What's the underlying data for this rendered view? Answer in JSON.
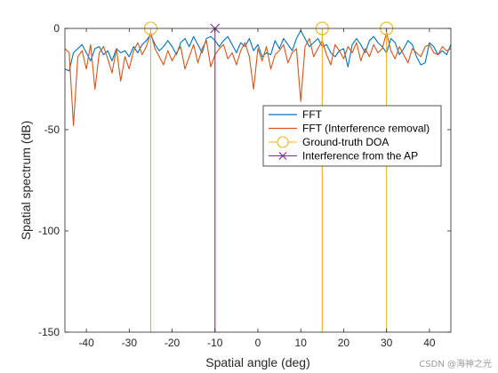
{
  "chart_data": {
    "type": "line",
    "title": "",
    "xlabel": "Spatial angle (deg)",
    "ylabel": "Spatial spectrum (dB)",
    "xlim": [
      -45,
      45
    ],
    "ylim": [
      -150,
      0
    ],
    "xticks": [
      -40,
      -30,
      -20,
      -10,
      0,
      10,
      20,
      30,
      40
    ],
    "yticks": [
      0,
      -50,
      -100,
      -150
    ],
    "grid": false,
    "legend_position": "middle-right",
    "colors": {
      "fft": "#0072BD",
      "fft_ir": "#D95319",
      "doa": "#EDB120",
      "ap": "#7E2F8E"
    },
    "series": [
      {
        "name": "FFT",
        "x": [
          -45,
          -44,
          -43,
          -42,
          -41,
          -40,
          -39,
          -38,
          -37,
          -36,
          -35,
          -34,
          -33,
          -32,
          -31,
          -30,
          -29,
          -28,
          -27,
          -26,
          -25,
          -24,
          -23,
          -22,
          -21,
          -20,
          -19,
          -18,
          -17,
          -16,
          -15,
          -14,
          -13,
          -12,
          -11,
          -10,
          -9,
          -8,
          -7,
          -6,
          -5,
          -4,
          -3,
          -2,
          -1,
          0,
          1,
          2,
          3,
          4,
          5,
          6,
          7,
          8,
          9,
          10,
          11,
          12,
          13,
          14,
          15,
          16,
          17,
          18,
          19,
          20,
          21,
          22,
          23,
          24,
          25,
          26,
          27,
          28,
          29,
          30,
          31,
          32,
          33,
          34,
          35,
          36,
          37,
          38,
          39,
          40,
          41,
          42,
          43,
          44,
          45
        ],
        "y": [
          -20,
          -21,
          -12,
          -10,
          -8,
          -12,
          -16,
          -10,
          -9,
          -13,
          -11,
          -16,
          -10,
          -12,
          -11,
          -14,
          -9,
          -12,
          -8,
          -6,
          -3,
          -8,
          -11,
          -9,
          -6,
          -9,
          -13,
          -7,
          -5,
          -9,
          -4,
          -8,
          -12,
          -5,
          -4,
          -6,
          -9,
          -6,
          -4,
          -8,
          -12,
          -7,
          -9,
          -5,
          -11,
          -8,
          -14,
          -12,
          -13,
          -6,
          -10,
          -5,
          -8,
          -11,
          -5,
          -1,
          -5,
          -9,
          -7,
          -5,
          -9,
          -8,
          -12,
          -14,
          -11,
          -10,
          -19,
          -8,
          -5,
          -8,
          -12,
          -6,
          -4,
          -7,
          -9,
          -12,
          -5,
          -7,
          -13,
          -10,
          -6,
          -8,
          -14,
          -18,
          -17,
          -7,
          -9,
          -13,
          -11,
          -13,
          -8
        ]
      },
      {
        "name": "FFT (Interference removal)",
        "x": [
          -45,
          -44,
          -43,
          -42,
          -41,
          -40,
          -39,
          -38,
          -37,
          -36,
          -35,
          -34,
          -33,
          -32,
          -31,
          -30,
          -29,
          -28,
          -27,
          -26,
          -25,
          -24,
          -23,
          -22,
          -21,
          -20,
          -19,
          -18,
          -17,
          -16,
          -15,
          -14,
          -13,
          -12,
          -11,
          -10,
          -9,
          -8,
          -7,
          -6,
          -5,
          -4,
          -3,
          -2,
          -1,
          0,
          1,
          2,
          3,
          4,
          5,
          6,
          7,
          8,
          9,
          10,
          11,
          12,
          13,
          14,
          15,
          16,
          17,
          18,
          19,
          20,
          21,
          22,
          23,
          24,
          25,
          26,
          27,
          28,
          29,
          30,
          31,
          32,
          33,
          34,
          35,
          36,
          37,
          38,
          39,
          40,
          41,
          42,
          43,
          44,
          45
        ],
        "y": [
          -10,
          -12,
          -48,
          -14,
          -11,
          -20,
          -8,
          -30,
          -12,
          -9,
          -15,
          -22,
          -10,
          -26,
          -14,
          -20,
          -11,
          -7,
          -13,
          -9,
          -2,
          -10,
          -14,
          -18,
          -11,
          -16,
          -12,
          -9,
          -20,
          -14,
          -8,
          -17,
          -10,
          -6,
          -19,
          -13,
          -10,
          -8,
          -15,
          -12,
          -18,
          -11,
          -7,
          -14,
          -30,
          -10,
          -16,
          -9,
          -20,
          -13,
          -11,
          -8,
          -17,
          -12,
          -10,
          -36,
          -9,
          -5,
          -14,
          -10,
          -6,
          -13,
          -18,
          -8,
          -11,
          -15,
          -9,
          -12,
          -7,
          -16,
          -10,
          -14,
          -8,
          -12,
          -10,
          -2,
          -11,
          -15,
          -9,
          -13,
          -17,
          -10,
          -12,
          -14,
          -9,
          -8,
          -12,
          -13,
          -9,
          -11,
          -10
        ]
      }
    ],
    "vlines": [
      {
        "name": "Ground-truth DOA",
        "marker": "circle",
        "x": [
          -25,
          15,
          30
        ],
        "y_top": 0
      },
      {
        "name": "Interference from the AP",
        "marker": "x",
        "x": [
          -10
        ],
        "y_top": 0
      }
    ],
    "legend": [
      {
        "label": "FFT",
        "style": "line",
        "color_key": "fft"
      },
      {
        "label": "FFT (Interference removal)",
        "style": "line",
        "color_key": "fft_ir"
      },
      {
        "label": "Ground-truth DOA",
        "style": "circle",
        "color_key": "doa"
      },
      {
        "label": "Interference from the AP",
        "style": "x",
        "color_key": "ap"
      }
    ]
  },
  "watermark": "CSDN @海神之光"
}
